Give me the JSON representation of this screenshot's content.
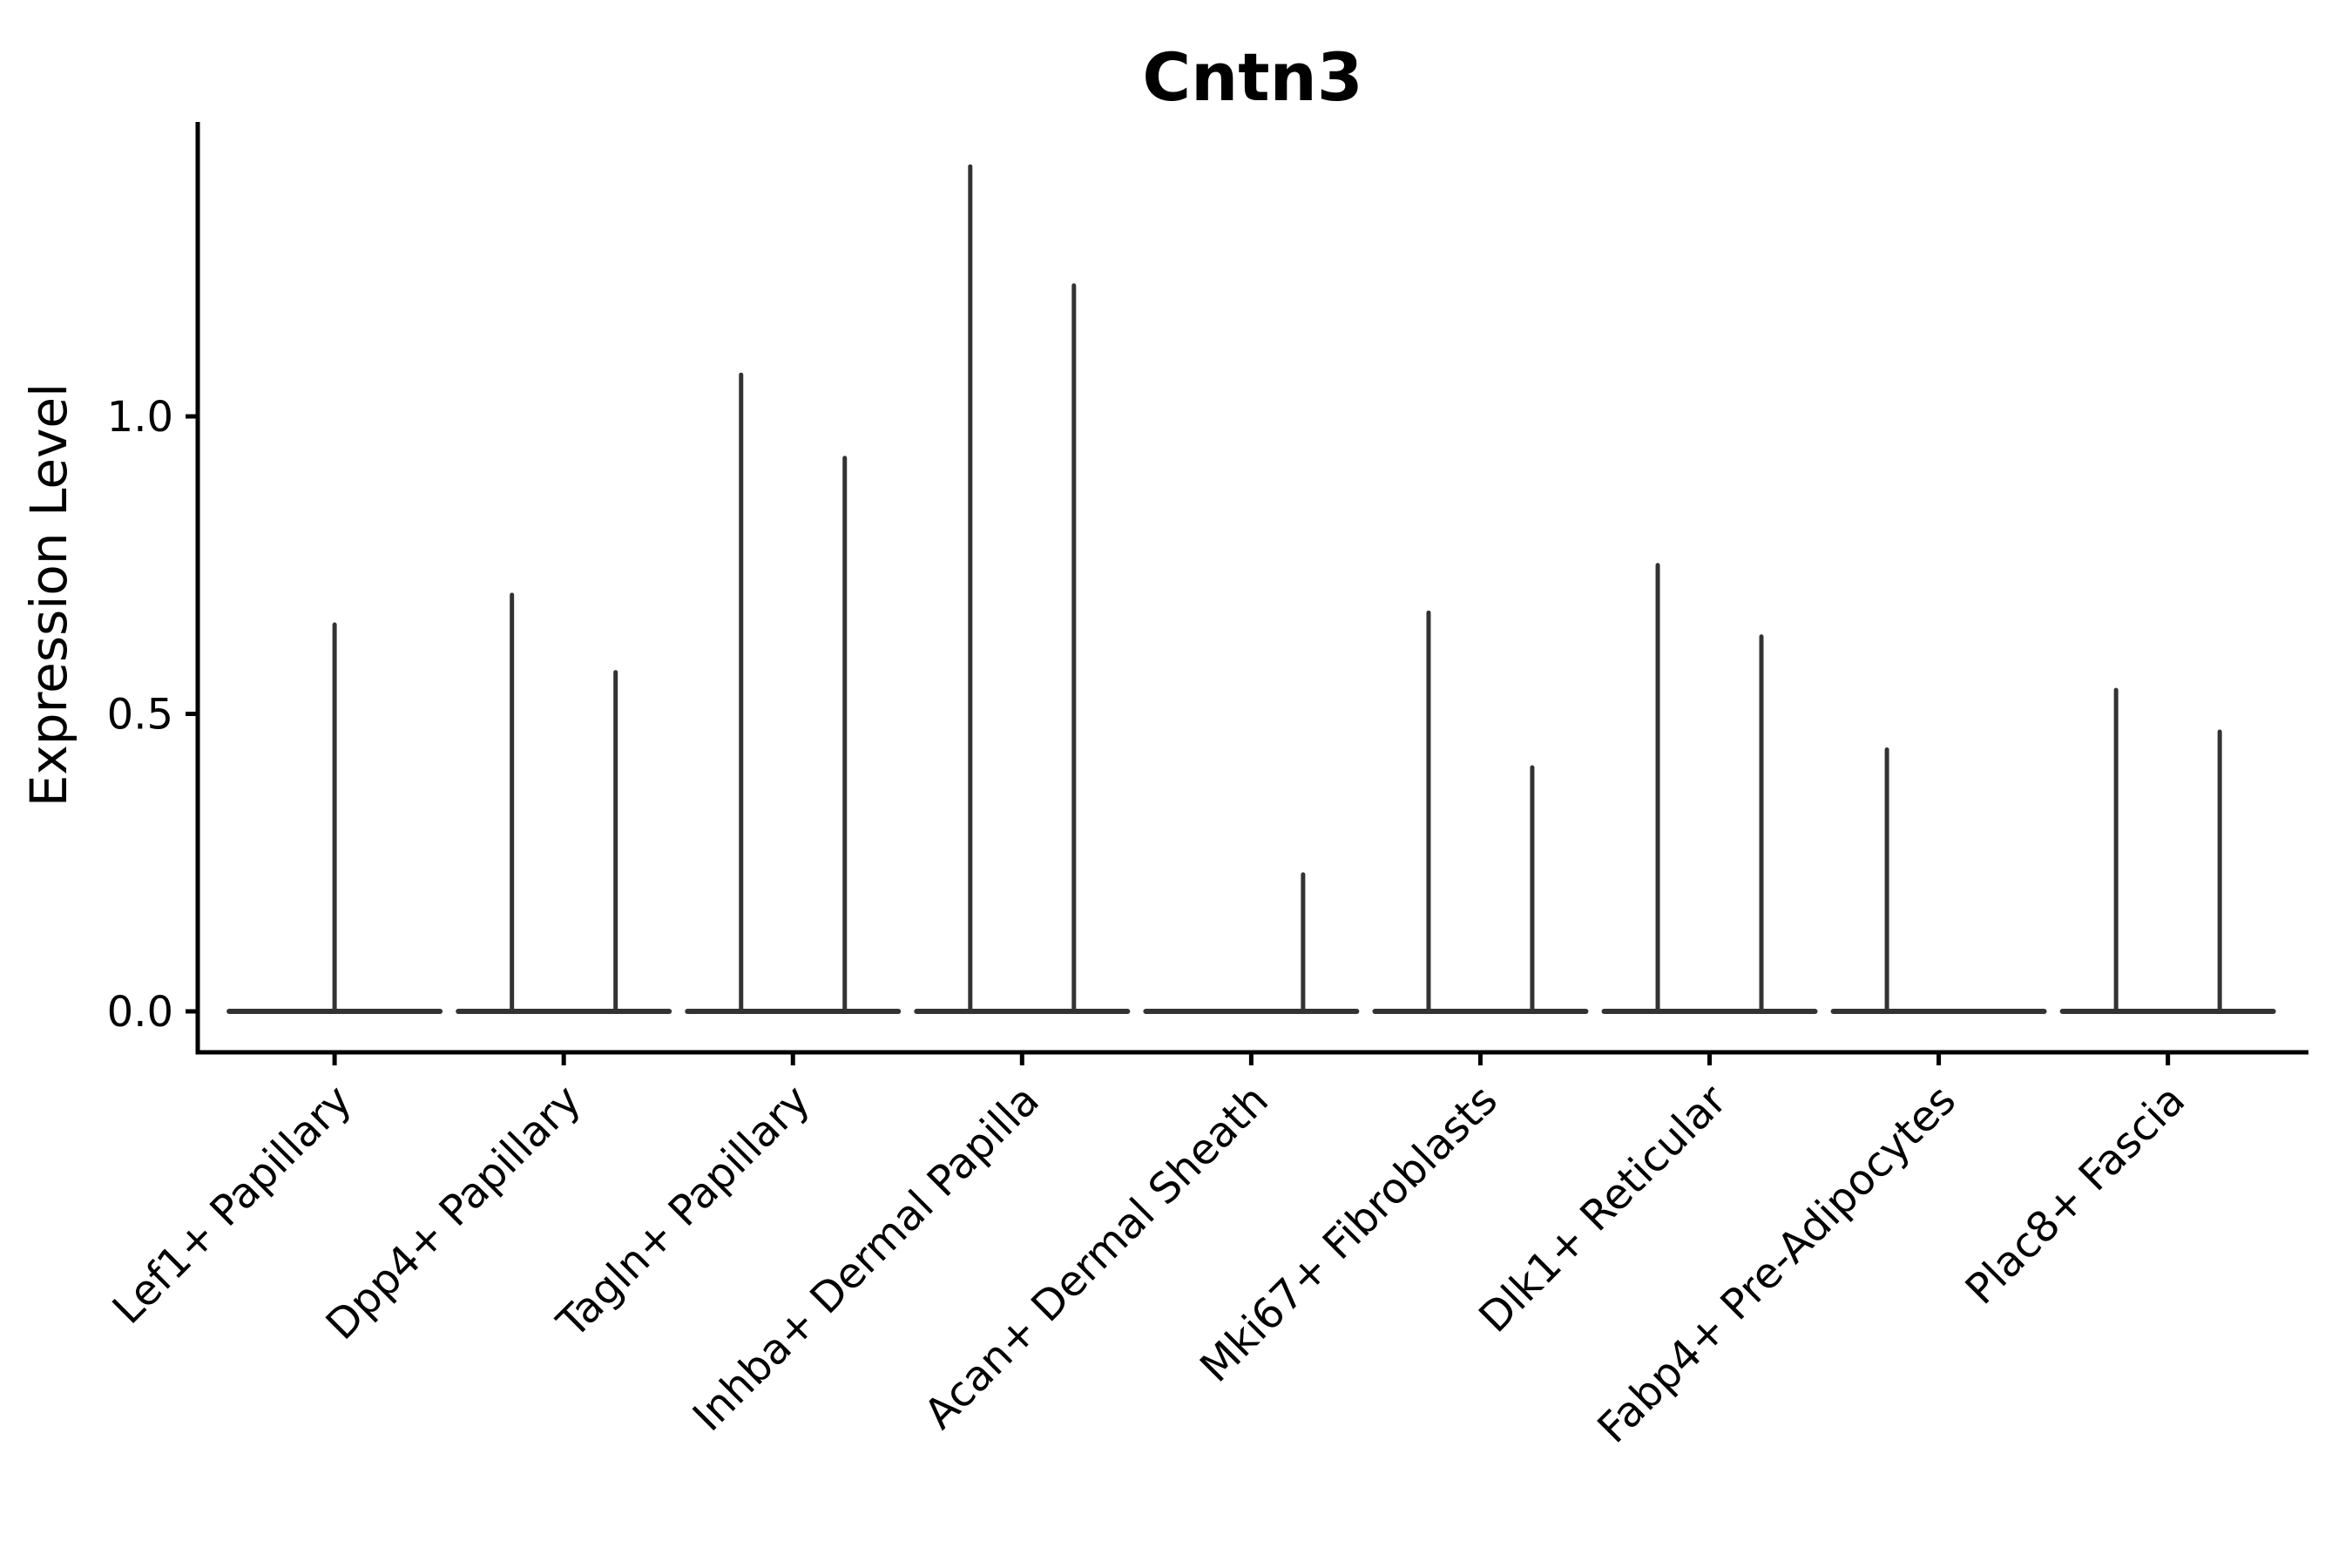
{
  "figure": {
    "background": "#ffffff",
    "axis_color": "#000000",
    "text_color": "#000000"
  },
  "chart_data": {
    "type": "violin",
    "title": "Cntn3",
    "xlabel": "",
    "ylabel": "Expression Level",
    "grid": false,
    "legend": "none",
    "ylim": [
      -0.07,
      1.5
    ],
    "ytick_labels": [
      "0.0",
      "0.5",
      "1.0"
    ],
    "ytick_values": [
      0.0,
      0.5,
      1.0
    ],
    "violin_line_color": "#333333",
    "note": "Each category shows a flattened violin: wide base at expression 0 plus thin spike(s) up to the max expression; pos is the sub-violin position within the category slot",
    "categories": [
      {
        "label": "Lef1+ Papillary",
        "violins": [
          {
            "pos": "center",
            "max": 0.65
          }
        ]
      },
      {
        "label": "Dpp4+ Papillary",
        "violins": [
          {
            "pos": "left",
            "max": 0.7
          },
          {
            "pos": "right",
            "max": 0.57
          }
        ]
      },
      {
        "label": "Tagln+ Papillary",
        "violins": [
          {
            "pos": "left",
            "max": 1.07
          },
          {
            "pos": "right",
            "max": 0.93
          }
        ]
      },
      {
        "label": "Inhba+ Dermal Papilla",
        "violins": [
          {
            "pos": "left",
            "max": 1.42
          },
          {
            "pos": "right",
            "max": 1.22
          }
        ]
      },
      {
        "label": "Acan+ Dermal Sheath",
        "violins": [
          {
            "pos": "right",
            "max": 0.23
          }
        ]
      },
      {
        "label": "Mki67+ Fibroblasts",
        "violins": [
          {
            "pos": "left",
            "max": 0.67
          },
          {
            "pos": "right",
            "max": 0.41
          }
        ]
      },
      {
        "label": "Dlk1+ Reticular",
        "violins": [
          {
            "pos": "left",
            "max": 0.75
          },
          {
            "pos": "right",
            "max": 0.63
          }
        ]
      },
      {
        "label": "Fabp4+ Pre-Adipocytes",
        "violins": [
          {
            "pos": "left",
            "max": 0.44
          }
        ]
      },
      {
        "label": "Plac8+ Fascia",
        "violins": [
          {
            "pos": "left",
            "max": 0.54
          },
          {
            "pos": "right",
            "max": 0.47
          }
        ]
      }
    ]
  }
}
